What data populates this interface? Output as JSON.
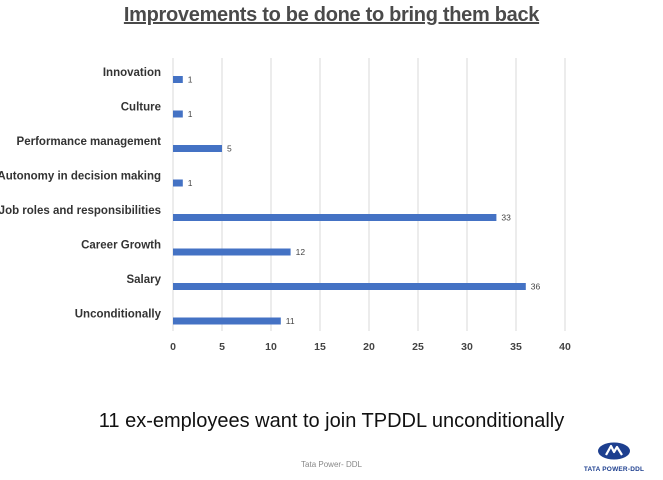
{
  "slide": {
    "title": "Improvements to be done to bring them back",
    "caption": "11 ex-employees want to join TPDDL unconditionally",
    "footer": "Tata Power- DDL",
    "brand_text": "TATA POWER-DDL",
    "brand_color": "#1d3f8f"
  },
  "chart_data": {
    "type": "bar",
    "orientation": "horizontal",
    "categories": [
      "Innovation",
      "Culture",
      "Performance management",
      "Autonomy in decision making",
      "Job roles and responsibilities",
      "Career Growth",
      "Salary",
      "Unconditionally"
    ],
    "values": [
      1,
      1,
      5,
      1,
      33,
      12,
      36,
      11
    ],
    "data_labels": [
      "1",
      "1",
      "5",
      "1",
      "33",
      "12",
      "36",
      "11"
    ],
    "xlim": [
      0,
      40
    ],
    "xticks": [
      0,
      5,
      10,
      15,
      20,
      25,
      30,
      35,
      40
    ],
    "xtick_labels": [
      "0",
      "5",
      "10",
      "15",
      "20",
      "25",
      "30",
      "35",
      "40"
    ],
    "grid": "vertical",
    "legend": "none",
    "bar_color": "#4472c4",
    "grid_color": "#d9d9d9"
  }
}
